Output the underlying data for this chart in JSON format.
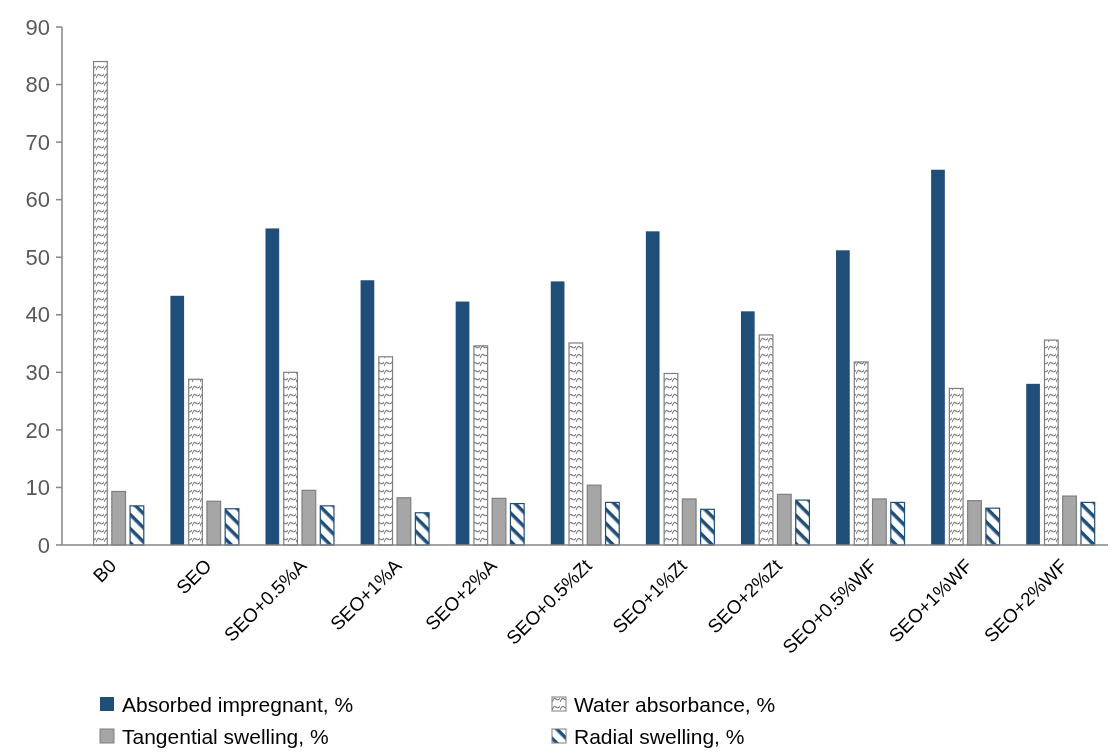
{
  "chart_data": {
    "type": "bar",
    "categories": [
      "B0",
      "SEO",
      "SEO+0.5%A",
      "SEO+1%A",
      "SEO+2%A",
      "SEO+0.5%Zt",
      "SEO+1%Zt",
      "SEO+2%Zt",
      "SEO+0.5%WF",
      "SEO+1%WF",
      "SEO+2%WF"
    ],
    "series": [
      {
        "name": "Absorbed impregnant, %",
        "color": "#1f4e79",
        "values": [
          null,
          43.3,
          55,
          46,
          42.3,
          45.8,
          54.5,
          40.6,
          51.2,
          65.2,
          28
        ]
      },
      {
        "name": "Water absorbance, %",
        "color": "#7f7f7f",
        "values": [
          84,
          28.8,
          30,
          32.7,
          34.6,
          35.1,
          29.8,
          36.5,
          31.8,
          27.2,
          35.6
        ]
      },
      {
        "name": "Tangential swelling, %",
        "color": "#a6a6a6",
        "values": [
          9.3,
          7.6,
          9.5,
          8.2,
          8.1,
          10.4,
          8,
          8.8,
          8,
          7.7,
          8.5
        ]
      },
      {
        "name": "Radial swelling, %",
        "color": "#1f4e79",
        "values": [
          6.8,
          6.3,
          6.8,
          5.6,
          7.2,
          7.4,
          6.2,
          7.8,
          7.4,
          6.4,
          7.4
        ]
      }
    ],
    "ylim": [
      0,
      90
    ],
    "yticks": [
      0,
      10,
      20,
      30,
      40,
      50,
      60,
      70,
      80,
      90
    ],
    "grid": false,
    "legend": "bottom"
  }
}
